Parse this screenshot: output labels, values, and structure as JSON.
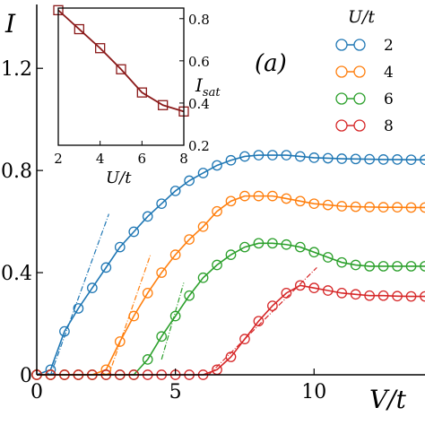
{
  "chart_data": [
    {
      "type": "line",
      "panel_label": "(a)",
      "xlabel": "V/t",
      "ylabel": "I",
      "xlim": [
        0,
        14
      ],
      "ylim": [
        0,
        1.45
      ],
      "xticks": [
        0,
        5,
        10
      ],
      "yticks": [
        0,
        0.4,
        0.8,
        1.2
      ],
      "xtick_labels": [
        "0",
        "5",
        "10"
      ],
      "ytick_labels": [
        "0",
        "0.4",
        "0.8",
        "1.2"
      ],
      "legend": {
        "title": "U/t",
        "placement": "top-right"
      },
      "x": [
        0,
        0.5,
        1,
        1.5,
        2,
        2.5,
        3,
        3.5,
        4,
        4.5,
        5,
        5.5,
        6,
        6.5,
        7,
        7.5,
        8,
        8.5,
        9,
        9.5,
        10,
        10.5,
        11,
        11.5,
        12,
        12.5,
        13,
        13.5,
        14
      ],
      "series": [
        {
          "name": "2",
          "color": "#1f77b4",
          "values": [
            0,
            0.02,
            0.17,
            0.26,
            0.34,
            0.42,
            0.5,
            0.56,
            0.62,
            0.67,
            0.72,
            0.76,
            0.79,
            0.82,
            0.84,
            0.855,
            0.86,
            0.86,
            0.86,
            0.855,
            0.85,
            0.848,
            0.846,
            0.845,
            0.844,
            0.843,
            0.843,
            0.842,
            0.842
          ]
        },
        {
          "name": "4",
          "color": "#ff7f0e",
          "values": [
            0,
            0,
            0,
            0,
            0,
            0.02,
            0.13,
            0.23,
            0.32,
            0.4,
            0.47,
            0.53,
            0.58,
            0.64,
            0.68,
            0.7,
            0.7,
            0.7,
            0.69,
            0.68,
            0.67,
            0.665,
            0.66,
            0.658,
            0.657,
            0.656,
            0.656,
            0.655,
            0.655
          ]
        },
        {
          "name": "6",
          "color": "#2ca02c",
          "values": [
            0,
            0,
            0,
            0,
            0,
            0,
            0,
            0,
            0.06,
            0.15,
            0.23,
            0.31,
            0.38,
            0.43,
            0.47,
            0.5,
            0.515,
            0.515,
            0.51,
            0.5,
            0.48,
            0.46,
            0.44,
            0.43,
            0.425,
            0.425,
            0.425,
            0.425,
            0.425
          ]
        },
        {
          "name": "8",
          "color": "#d62728",
          "values": [
            0,
            0,
            0,
            0,
            0,
            0,
            0,
            0,
            0,
            0,
            0,
            0,
            0,
            0.02,
            0.07,
            0.14,
            0.21,
            0.27,
            0.32,
            0.35,
            0.34,
            0.33,
            0.32,
            0.315,
            0.31,
            0.31,
            0.308,
            0.307,
            0.307
          ]
        }
      ],
      "guide_lines": [
        {
          "series": "2",
          "x": [
            0.5,
            2.6
          ],
          "y": [
            0.0,
            0.63
          ]
        },
        {
          "series": "4",
          "x": [
            2.6,
            4.1
          ],
          "y": [
            0.0,
            0.47
          ]
        },
        {
          "series": "6",
          "x": [
            4.5,
            5.3
          ],
          "y": [
            0.06,
            0.36
          ]
        },
        {
          "series": "8",
          "x": [
            6.2,
            10.1
          ],
          "y": [
            0.0,
            0.42
          ]
        }
      ]
    },
    {
      "type": "line",
      "xlabel": "U/t",
      "ylabel": "I_sat",
      "xlim": [
        2,
        8
      ],
      "ylim": [
        0.2,
        0.85
      ],
      "xticks": [
        2,
        4,
        6,
        8
      ],
      "yticks": [
        0.2,
        0.4,
        0.6,
        0.8
      ],
      "xtick_labels": [
        "2",
        "4",
        "6",
        "8"
      ],
      "ytick_labels": [
        "0.2",
        "0.4",
        "0.6",
        "0.8"
      ],
      "yaxis_side": "right",
      "color": "#8b1a1a",
      "x": [
        2,
        3,
        4,
        5,
        6,
        7,
        8
      ],
      "values": [
        0.84,
        0.75,
        0.66,
        0.56,
        0.45,
        0.39,
        0.36
      ]
    }
  ]
}
